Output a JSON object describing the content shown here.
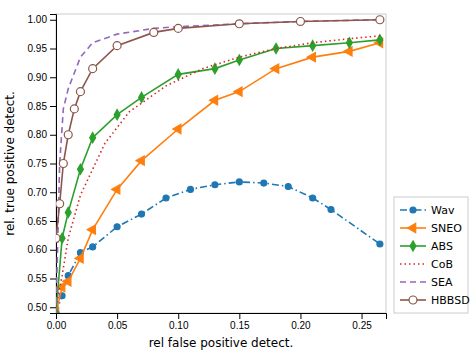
{
  "chart_data": {
    "type": "line",
    "xlabel": "rel false positive detect.",
    "ylabel": "rel. true positive detect.",
    "xlim": [
      0,
      0.27
    ],
    "ylim": [
      0.49,
      1.01
    ],
    "xticks": [
      {
        "value": 0,
        "label": "0.00"
      },
      0.05,
      {
        "value": 0.1,
        "label": "0.10"
      },
      0.15,
      {
        "value": 0.2,
        "label": "0.20"
      },
      0.25
    ],
    "yticks": [
      {
        "value": 0.5,
        "label": "0.50"
      },
      0.55,
      {
        "value": 0.6,
        "label": "0.60"
      },
      0.65,
      {
        "value": 0.7,
        "label": "0.70"
      },
      0.75,
      {
        "value": 0.8,
        "label": "0.80"
      },
      0.85,
      {
        "value": 0.9,
        "label": "0.90"
      },
      0.95,
      {
        "value": 1.0,
        "label": "1.00"
      }
    ],
    "grid": false,
    "legend": "right",
    "series": [
      {
        "name": "Wav",
        "line_style": "dashdot",
        "marker": "circle",
        "x": [
          0.0,
          0.005,
          0.01,
          0.02,
          0.03,
          0.05,
          0.07,
          0.09,
          0.11,
          0.13,
          0.15,
          0.17,
          0.19,
          0.21,
          0.225,
          0.265
        ],
        "values": [
          0.49,
          0.52,
          0.555,
          0.595,
          0.605,
          0.64,
          0.662,
          0.69,
          0.705,
          0.713,
          0.718,
          0.716,
          0.71,
          0.69,
          0.67,
          0.61
        ]
      },
      {
        "name": "SNEO",
        "line_style": "solid",
        "marker": "triangle-left",
        "x": [
          0.0,
          0.005,
          0.01,
          0.02,
          0.03,
          0.05,
          0.07,
          0.1,
          0.13,
          0.15,
          0.18,
          0.21,
          0.24,
          0.265
        ],
        "values": [
          0.49,
          0.535,
          0.545,
          0.585,
          0.635,
          0.705,
          0.755,
          0.81,
          0.86,
          0.875,
          0.915,
          0.935,
          0.945,
          0.96
        ]
      },
      {
        "name": "ABS",
        "line_style": "solid",
        "marker": "diamond",
        "x": [
          0.0,
          0.005,
          0.01,
          0.02,
          0.03,
          0.05,
          0.07,
          0.1,
          0.13,
          0.15,
          0.18,
          0.21,
          0.24,
          0.265
        ],
        "values": [
          0.49,
          0.62,
          0.665,
          0.74,
          0.795,
          0.835,
          0.865,
          0.905,
          0.915,
          0.93,
          0.95,
          0.955,
          0.96,
          0.965
        ]
      },
      {
        "name": "CoB",
        "line_style": "dotted",
        "marker": "none",
        "x": [
          0.0,
          0.005,
          0.01,
          0.02,
          0.04,
          0.06,
          0.09,
          0.12,
          0.15,
          0.18,
          0.21,
          0.24,
          0.265
        ],
        "values": [
          0.5,
          0.555,
          0.62,
          0.695,
          0.785,
          0.84,
          0.885,
          0.915,
          0.935,
          0.95,
          0.96,
          0.967,
          0.972
        ]
      },
      {
        "name": "SEA",
        "line_style": "dashed",
        "marker": "none",
        "x": [
          0.0,
          0.003,
          0.006,
          0.01,
          0.02,
          0.03,
          0.05,
          0.08,
          0.1,
          0.13,
          0.16,
          0.2,
          0.24,
          0.265
        ],
        "values": [
          0.49,
          0.75,
          0.845,
          0.88,
          0.935,
          0.96,
          0.975,
          0.985,
          0.988,
          0.991,
          0.994,
          0.997,
          0.999,
          1.0
        ]
      },
      {
        "name": "HBBSD",
        "line_style": "solid",
        "marker": "circle-open",
        "x": [
          0.0,
          0.003,
          0.006,
          0.01,
          0.015,
          0.02,
          0.03,
          0.05,
          0.08,
          0.1,
          0.15,
          0.2,
          0.265
        ],
        "values": [
          0.62,
          0.68,
          0.75,
          0.8,
          0.845,
          0.875,
          0.915,
          0.955,
          0.978,
          0.985,
          0.993,
          0.997,
          1.0
        ]
      }
    ]
  }
}
